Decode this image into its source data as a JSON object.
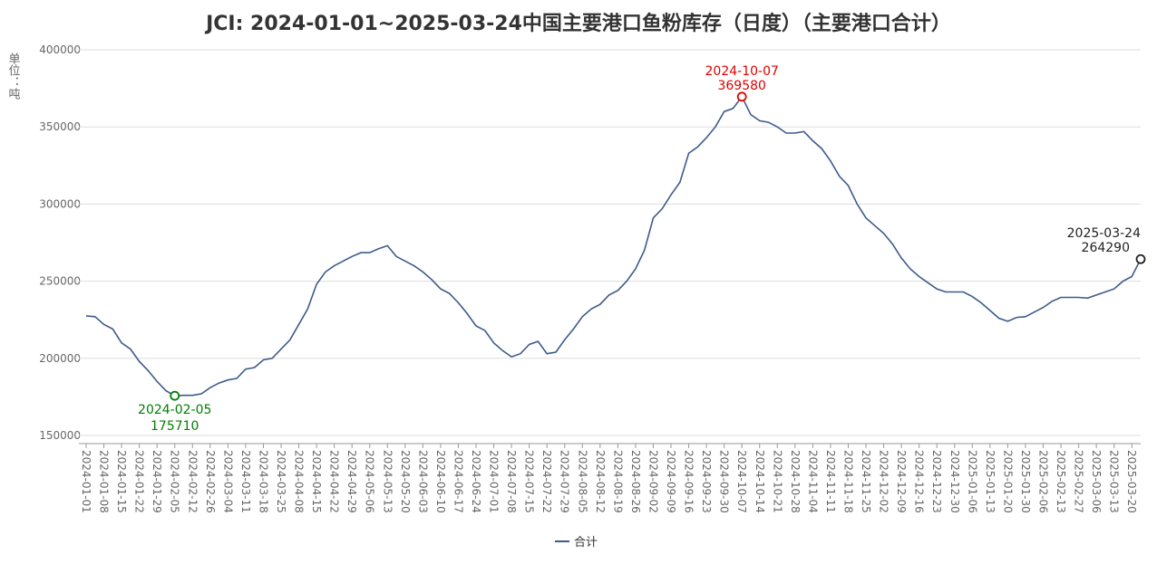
{
  "chart_data": {
    "type": "line",
    "title": "JCI: 2024-01-01~2025-03-24中国主要港口鱼粉库存（日度）（主要港口合计）",
    "y_label": "单位：吨",
    "categories": [
      "2024-01-01",
      null,
      "2024-01-08",
      null,
      "2024-01-15",
      null,
      "2024-01-22",
      null,
      "2024-01-29",
      null,
      "2024-02-05",
      null,
      "2024-02-12",
      null,
      "2024-02-26",
      null,
      "2024-03-04",
      null,
      "2024-03-11",
      null,
      "2024-03-18",
      null,
      "2024-03-25",
      null,
      "2024-04-08",
      null,
      "2024-04-15",
      null,
      "2024-04-22",
      null,
      "2024-04-29",
      null,
      "2024-05-06",
      null,
      "2024-05-13",
      null,
      "2024-05-20",
      null,
      "2024-06-03",
      null,
      "2024-06-10",
      null,
      "2024-06-17",
      null,
      "2024-06-24",
      null,
      "2024-07-01",
      null,
      "2024-07-08",
      null,
      "2024-07-15",
      null,
      "2024-07-22",
      null,
      "2024-07-29",
      null,
      "2024-08-05",
      null,
      "2024-08-12",
      null,
      "2024-08-19",
      null,
      "2024-08-26",
      null,
      "2024-09-02",
      null,
      "2024-09-09",
      null,
      "2024-09-16",
      null,
      "2024-09-23",
      null,
      "2024-09-30",
      null,
      "2024-10-07",
      null,
      "2024-10-14",
      null,
      "2024-10-21",
      null,
      "2024-10-28",
      null,
      "2024-11-04",
      null,
      "2024-11-11",
      null,
      "2024-11-18",
      null,
      "2024-11-25",
      null,
      "2024-12-02",
      null,
      "2024-12-09",
      null,
      "2024-12-16",
      null,
      "2024-12-23",
      null,
      "2024-12-30",
      null,
      "2025-01-06",
      null,
      "2025-01-13",
      null,
      "2025-01-20",
      null,
      "2025-01-30",
      null,
      "2025-02-06",
      null,
      "2025-02-13",
      null,
      "2025-02-27",
      null,
      "2025-03-06",
      null,
      "2025-03-13",
      null,
      "2025-03-20",
      null
    ],
    "series": [
      {
        "name": "合计",
        "color": "#3d5b8a",
        "values": [
          227500,
          227000,
          222000,
          219000,
          210000,
          206000,
          198000,
          192000,
          185000,
          179000,
          175710,
          176000,
          176000,
          177000,
          181000,
          184000,
          186000,
          187000,
          193000,
          194000,
          199000,
          200000,
          206000,
          212000,
          222000,
          232000,
          248000,
          256000,
          260000,
          263000,
          266000,
          268500,
          268500,
          271000,
          273000,
          266000,
          263000,
          260000,
          256000,
          251000,
          245000,
          242000,
          236000,
          229000,
          221000,
          218000,
          210000,
          205000,
          201000,
          203000,
          209000,
          211000,
          203000,
          204000,
          212000,
          219000,
          227000,
          232000,
          235000,
          241000,
          244000,
          250000,
          258000,
          270000,
          291000,
          297000,
          306000,
          314000,
          333000,
          337000,
          343000,
          350000,
          360000,
          362000,
          369580,
          358000,
          354000,
          353000,
          350000,
          346000,
          346000,
          347000,
          341000,
          336000,
          328000,
          318000,
          312000,
          300000,
          291000,
          286000,
          281000,
          274000,
          265000,
          258000,
          253000,
          249000,
          245000,
          243000,
          243000,
          243000,
          240000,
          236000,
          231000,
          226000,
          224000,
          226500,
          227000,
          230000,
          233000,
          237000,
          239500,
          239500,
          239500,
          239000,
          241000,
          243000,
          245000,
          250000,
          253000,
          264290
        ]
      }
    ],
    "last_date": "2025-03-24",
    "ylim": [
      150000,
      400000
    ],
    "yticks": [
      150000,
      200000,
      250000,
      300000,
      350000,
      400000
    ],
    "grid": true,
    "min_color": "#008000",
    "max_color": "#e00000",
    "last_color": "#222222"
  }
}
